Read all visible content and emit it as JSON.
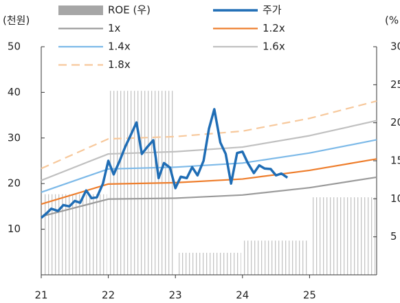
{
  "chart_data": {
    "type": "line",
    "y_label": "(천원)",
    "y2_label": "(%",
    "xlim": [
      21,
      26
    ],
    "xticks": [
      21,
      22,
      23,
      24,
      25
    ],
    "ylim": [
      0,
      50
    ],
    "yticks": [
      10,
      20,
      30,
      40,
      50
    ],
    "y2lim": [
      0,
      30
    ],
    "y2ticks": [
      5,
      10,
      15,
      20,
      25,
      30
    ],
    "series": [
      {
        "name": "ROE (우)",
        "color": "#a6a6a6",
        "axis": "y2",
        "style": "bar",
        "x": [
          21,
          22,
          23,
          24,
          25
        ],
        "values": [
          10.6,
          24.2,
          2.9,
          4.5,
          10.2
        ]
      },
      {
        "name": "주가",
        "color": "#1f6db5",
        "style": "line",
        "x": [
          21.0,
          21.08,
          21.15,
          21.25,
          21.33,
          21.42,
          21.5,
          21.58,
          21.67,
          21.75,
          21.83,
          21.92,
          22.0,
          22.08,
          22.17,
          22.25,
          22.33,
          22.42,
          22.5,
          22.58,
          22.67,
          22.75,
          22.83,
          22.92,
          23.0,
          23.08,
          23.17,
          23.25,
          23.33,
          23.42,
          23.5,
          23.58,
          23.67,
          23.75,
          23.83,
          23.92,
          24.0,
          24.08,
          24.17,
          24.25,
          24.33,
          24.42,
          24.5,
          24.58,
          24.67
        ],
        "values": [
          12.5,
          13.5,
          14.5,
          14,
          15.3,
          15,
          16.2,
          15.8,
          18.5,
          16.8,
          17,
          20,
          25,
          22,
          25,
          28,
          30.5,
          33.4,
          26.5,
          28,
          29.5,
          21.2,
          24.5,
          23.5,
          19,
          21.5,
          21.2,
          23.6,
          21.8,
          25,
          32,
          36.3,
          29,
          26.5,
          20,
          26.7,
          27,
          24.5,
          22.3,
          24,
          23.3,
          23.2,
          21.8,
          22.2,
          21.3
        ]
      },
      {
        "name": "1x",
        "color": "#9a9a9a",
        "style": "line",
        "x": [
          21,
          22,
          23,
          24,
          25,
          26
        ],
        "values": [
          12.8,
          16.6,
          16.8,
          17.5,
          19.1,
          21.4
        ]
      },
      {
        "name": "1.2x",
        "color": "#ee7d2b",
        "style": "line",
        "x": [
          21,
          22,
          23,
          24,
          25,
          26
        ],
        "values": [
          15.5,
          19.9,
          20.2,
          21,
          22.9,
          25.4
        ]
      },
      {
        "name": "1.4x",
        "color": "#7cb9e8",
        "style": "line",
        "x": [
          21,
          22,
          23,
          24,
          25,
          26
        ],
        "values": [
          18.1,
          23.2,
          23.6,
          24.5,
          26.7,
          29.6
        ]
      },
      {
        "name": "1.6x",
        "color": "#c0c0c0",
        "style": "line",
        "x": [
          21,
          22,
          23,
          24,
          25,
          26
        ],
        "values": [
          20.7,
          26.5,
          27,
          28,
          30.5,
          33.8
        ]
      },
      {
        "name": "1.8x",
        "color": "#f7c89b",
        "style": "dashed",
        "x": [
          21,
          22,
          23,
          24,
          25,
          26
        ],
        "values": [
          23.3,
          29.8,
          30.3,
          31.5,
          34.3,
          38.1
        ]
      }
    ]
  }
}
